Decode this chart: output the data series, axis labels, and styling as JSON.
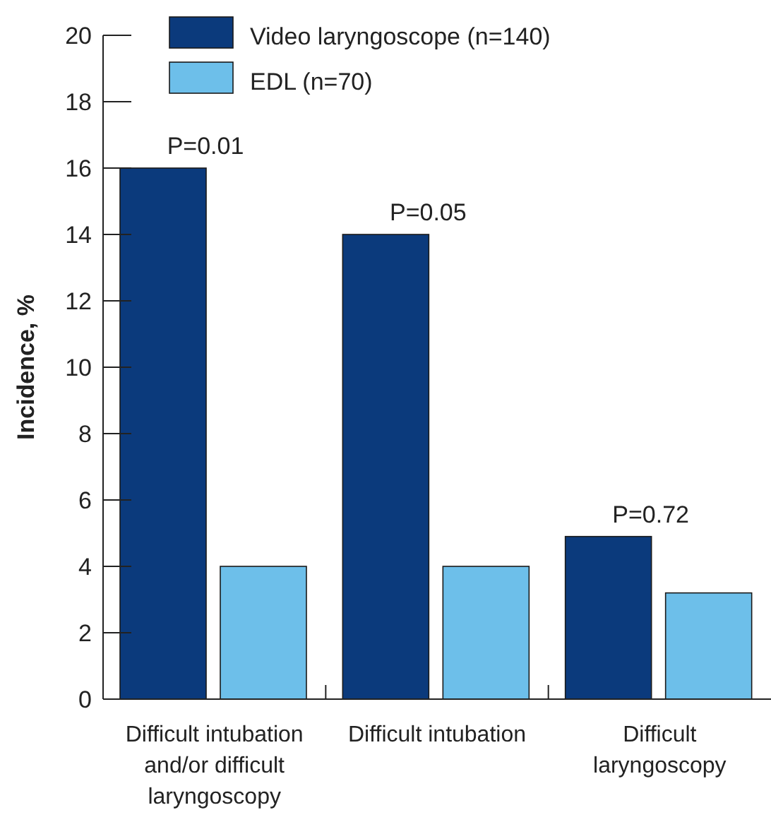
{
  "chart_data": {
    "type": "bar",
    "ylabel": "Incidence, %",
    "categories": [
      "Difficult intubation and/or difficult laryngoscopy",
      "Difficult intubation",
      "Difficult laryngoscopy"
    ],
    "series": [
      {
        "name": "Video laryngoscope (n=140)",
        "color": "#0b3a7c",
        "values": [
          16,
          14,
          4.9
        ]
      },
      {
        "name": "EDL (n=70)",
        "color": "#6dbfea",
        "values": [
          4,
          4,
          3.2
        ]
      }
    ],
    "ylim": [
      0,
      20
    ],
    "yticks": [
      0,
      2,
      4,
      6,
      8,
      10,
      12,
      14,
      16,
      18,
      20
    ],
    "grid": false,
    "legend": "top left",
    "annotations": [
      "P=0.01",
      "P=0.05",
      "P=0.72"
    ]
  }
}
